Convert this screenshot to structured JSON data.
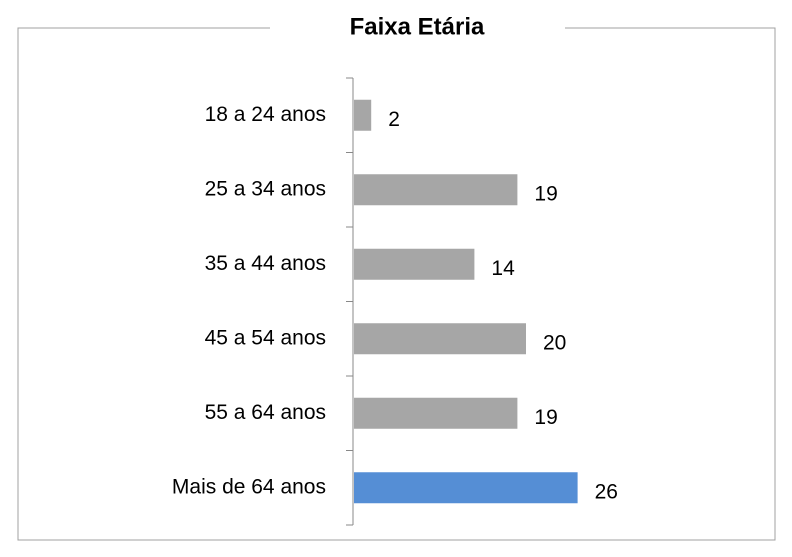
{
  "chart_data": {
    "type": "bar",
    "orientation": "horizontal",
    "title": "Faixa Etária",
    "categories": [
      "18 a 24 anos",
      "25 a 34 anos",
      "35 a 44 anos",
      "45 a 54 anos",
      "55 a 64 anos",
      "Mais de 64 anos"
    ],
    "values": [
      2,
      19,
      14,
      20,
      19,
      26
    ],
    "colors": [
      "#a6a6a6",
      "#a6a6a6",
      "#a6a6a6",
      "#a6a6a6",
      "#a6a6a6",
      "#558ed5"
    ]
  }
}
